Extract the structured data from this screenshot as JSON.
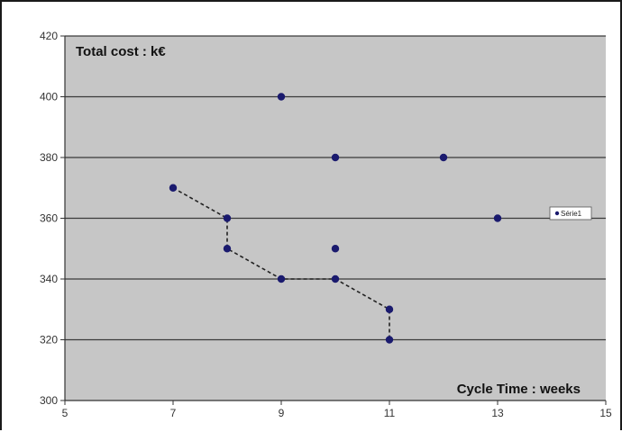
{
  "chart_data": {
    "type": "scatter",
    "title": "",
    "ylabel": "Total cost : k€",
    "xlabel": "Cycle Time : weeks",
    "xlim": [
      5,
      15
    ],
    "ylim": [
      300,
      420
    ],
    "xticks": [
      5,
      7,
      9,
      11,
      13,
      15
    ],
    "yticks": [
      300,
      320,
      340,
      360,
      380,
      400,
      420
    ],
    "grid": "horizontal",
    "legend": {
      "position": "right",
      "entries": [
        "Série1"
      ]
    },
    "series": [
      {
        "name": "Série1",
        "points": [
          {
            "x": 7,
            "y": 370
          },
          {
            "x": 8,
            "y": 360
          },
          {
            "x": 8,
            "y": 350
          },
          {
            "x": 9,
            "y": 400
          },
          {
            "x": 9,
            "y": 340
          },
          {
            "x": 10,
            "y": 380
          },
          {
            "x": 10,
            "y": 350
          },
          {
            "x": 10,
            "y": 340
          },
          {
            "x": 11,
            "y": 330
          },
          {
            "x": 11,
            "y": 320
          },
          {
            "x": 12,
            "y": 380
          },
          {
            "x": 13,
            "y": 360
          }
        ]
      }
    ],
    "pareto_front": [
      {
        "x": 7,
        "y": 370
      },
      {
        "x": 8,
        "y": 360
      },
      {
        "x": 8,
        "y": 350
      },
      {
        "x": 9,
        "y": 340
      },
      {
        "x": 10,
        "y": 340
      },
      {
        "x": 11,
        "y": 330
      },
      {
        "x": 11,
        "y": 320
      }
    ]
  },
  "colors": {
    "plot_background": "#c6c6c6",
    "gridline": "#3a3a3a",
    "marker": "#1a1a6e",
    "front_line": "#222222"
  }
}
